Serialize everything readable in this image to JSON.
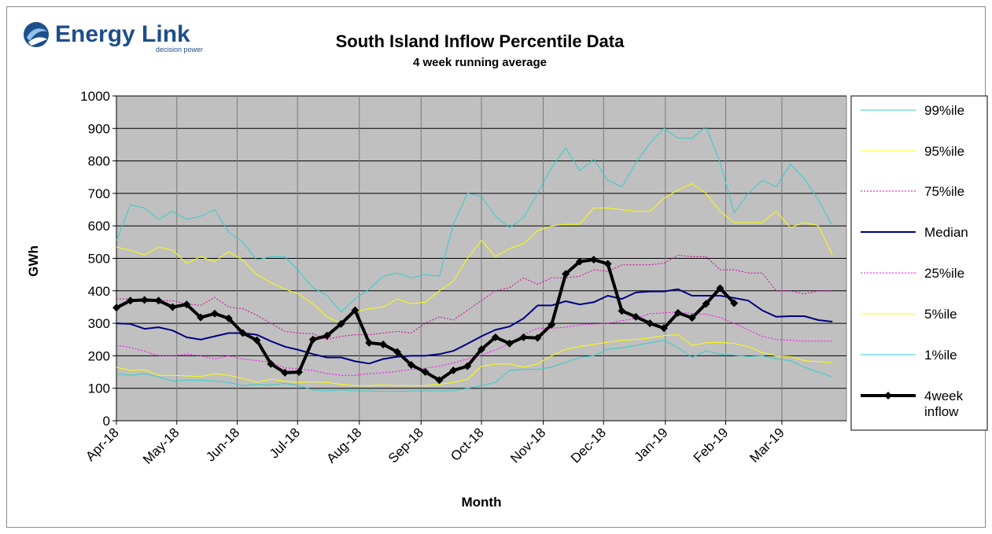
{
  "logo": {
    "brand": "Energy Link",
    "tagline": "decision power",
    "brand_color": "#1f4e8c"
  },
  "chart_data": {
    "type": "line",
    "title": "South Island Inflow Percentile Data",
    "subtitle": "4 week running average",
    "xlabel": "Month",
    "ylabel": "GWh",
    "ylim": [
      0,
      1000
    ],
    "yticks": [
      0,
      100,
      200,
      300,
      400,
      500,
      600,
      700,
      800,
      900,
      1000
    ],
    "xlim": [
      0,
      52
    ],
    "xticks": [
      {
        "label": "Apr-18",
        "pos": 0
      },
      {
        "label": "May-18",
        "pos": 4.3
      },
      {
        "label": "Jun-18",
        "pos": 8.6
      },
      {
        "label": "Jul-18",
        "pos": 12.9
      },
      {
        "label": "Aug-18",
        "pos": 17.3
      },
      {
        "label": "Sep-18",
        "pos": 21.7
      },
      {
        "label": "Oct-18",
        "pos": 26.0
      },
      {
        "label": "Nov-18",
        "pos": 30.4
      },
      {
        "label": "Dec-18",
        "pos": 34.7
      },
      {
        "label": "Jan-19",
        "pos": 39.1
      },
      {
        "label": "Feb-19",
        "pos": 43.4
      },
      {
        "label": "Mar-19",
        "pos": 47.4
      }
    ],
    "grid": true,
    "plot_background": "#c0c0c0",
    "legend_position": "right",
    "series": [
      {
        "name": "99%ile",
        "color": "#33cccc",
        "width": 1,
        "dash": "",
        "values": [
          555,
          665,
          655,
          620,
          645,
          620,
          630,
          650,
          580,
          550,
          495,
          505,
          505,
          460,
          410,
          385,
          335,
          375,
          405,
          445,
          455,
          440,
          450,
          445,
          605,
          700,
          690,
          630,
          595,
          625,
          700,
          780,
          840,
          770,
          805,
          740,
          720,
          795,
          855,
          900,
          870,
          870,
          905,
          795,
          640,
          700,
          740,
          720,
          790,
          745,
          680,
          600
        ]
      },
      {
        "name": "95%ile",
        "color": "#ffff00",
        "width": 1,
        "dash": "",
        "values": [
          535,
          525,
          510,
          535,
          525,
          485,
          505,
          490,
          520,
          495,
          450,
          425,
          405,
          390,
          360,
          320,
          300,
          335,
          345,
          350,
          375,
          360,
          365,
          400,
          430,
          500,
          555,
          505,
          530,
          545,
          585,
          600,
          605,
          605,
          655,
          655,
          650,
          645,
          645,
          685,
          710,
          730,
          700,
          645,
          610,
          610,
          610,
          645,
          595,
          610,
          600,
          510
        ]
      },
      {
        "name": "75%ile",
        "color": "#cc0099",
        "width": 1,
        "dash": "2,2",
        "values": [
          375,
          375,
          365,
          370,
          370,
          360,
          355,
          380,
          350,
          345,
          325,
          300,
          275,
          270,
          268,
          250,
          260,
          265,
          265,
          270,
          275,
          270,
          300,
          320,
          310,
          340,
          370,
          400,
          410,
          440,
          420,
          440,
          440,
          445,
          465,
          460,
          480,
          480,
          480,
          485,
          510,
          505,
          505,
          465,
          465,
          455,
          455,
          400,
          400,
          390,
          400,
          400
        ]
      },
      {
        "name": "Median",
        "color": "#000080",
        "width": 2,
        "dash": "",
        "values": [
          300,
          298,
          283,
          288,
          278,
          257,
          250,
          260,
          270,
          270,
          265,
          245,
          228,
          218,
          205,
          195,
          195,
          183,
          176,
          190,
          197,
          200,
          200,
          205,
          215,
          237,
          260,
          280,
          290,
          315,
          355,
          355,
          368,
          358,
          365,
          385,
          375,
          395,
          398,
          398,
          405,
          385,
          385,
          385,
          378,
          370,
          340,
          320,
          322,
          322,
          310,
          305
        ]
      },
      {
        "name": "25%ile",
        "color": "#ff00ff",
        "width": 1,
        "dash": "2,2",
        "values": [
          232,
          226,
          214,
          200,
          200,
          205,
          200,
          190,
          200,
          190,
          185,
          180,
          163,
          160,
          155,
          145,
          140,
          140,
          145,
          148,
          152,
          158,
          162,
          168,
          178,
          190,
          202,
          218,
          238,
          265,
          285,
          285,
          288,
          295,
          298,
          300,
          308,
          315,
          330,
          332,
          335,
          330,
          328,
          318,
          300,
          280,
          260,
          250,
          248,
          245,
          245,
          245
        ]
      },
      {
        "name": "5%ile",
        "color": "#ffff00",
        "width": 1,
        "dash": "",
        "values": [
          165,
          155,
          157,
          140,
          140,
          138,
          136,
          145,
          140,
          130,
          118,
          128,
          122,
          118,
          120,
          118,
          112,
          108,
          108,
          110,
          108,
          108,
          108,
          112,
          118,
          128,
          168,
          175,
          175,
          165,
          175,
          200,
          220,
          228,
          235,
          242,
          248,
          250,
          255,
          262,
          265,
          232,
          240,
          242,
          238,
          228,
          210,
          200,
          198,
          185,
          182,
          178
        ]
      },
      {
        "name": "1%ile",
        "color": "#33cccc",
        "width": 1,
        "dash": "",
        "values": [
          145,
          140,
          145,
          135,
          122,
          125,
          125,
          122,
          118,
          108,
          112,
          110,
          115,
          108,
          95,
          92,
          95,
          92,
          92,
          90,
          90,
          92,
          92,
          92,
          92,
          100,
          108,
          118,
          155,
          158,
          158,
          165,
          180,
          195,
          200,
          220,
          225,
          232,
          240,
          248,
          225,
          195,
          215,
          205,
          202,
          198,
          200,
          190,
          185,
          165,
          150,
          135
        ]
      },
      {
        "name": "4week inflow",
        "color": "#000000",
        "width": 4,
        "dash": "",
        "markers": true,
        "values": [
          348,
          370,
          372,
          370,
          350,
          358,
          318,
          330,
          315,
          270,
          248,
          175,
          148,
          150,
          250,
          262,
          298,
          340,
          240,
          235,
          212,
          172,
          150,
          125,
          155,
          168,
          220,
          257,
          238,
          257,
          255,
          296,
          452,
          490,
          496,
          483,
          338,
          320,
          300,
          285,
          332,
          317,
          360,
          408,
          362
        ]
      }
    ]
  }
}
